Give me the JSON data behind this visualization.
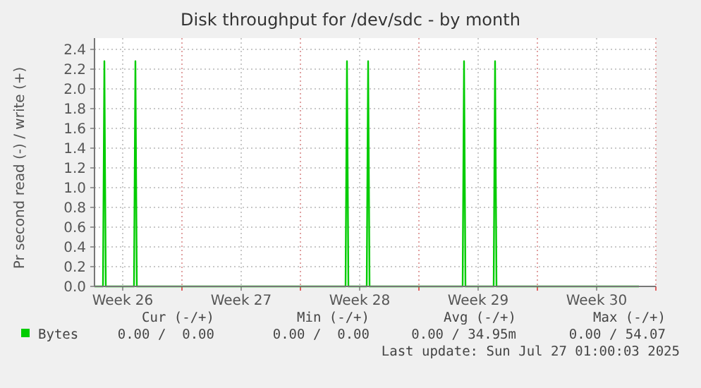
{
  "chart_data": {
    "type": "line",
    "title": "Disk throughput for /dev/sdc - by month",
    "ylabel": "Pr second read (-) / write (+)",
    "x": [
      "2025-06-24T20:00",
      "2025-06-25T08:00",
      "2025-06-25T10:00",
      "2025-06-25T12:00",
      "2025-06-27T04:00",
      "2025-06-27T06:00",
      "2025-06-27T08:00",
      "2025-07-09T16:00",
      "2025-07-09T18:00",
      "2025-07-09T20:00",
      "2025-07-10T22:00",
      "2025-07-11T00:00",
      "2025-07-11T02:00",
      "2025-07-16T14:00",
      "2025-07-16T16:00",
      "2025-07-16T18:00",
      "2025-07-18T10:00",
      "2025-07-18T12:00",
      "2025-07-18T14:00",
      "2025-07-27T00:00"
    ],
    "series": [
      {
        "name": "Bytes",
        "color": "#00cc00",
        "values": [
          0,
          0,
          2.28,
          0,
          0,
          2.28,
          0,
          0,
          2.28,
          0,
          0,
          2.28,
          0,
          0,
          2.28,
          0,
          0,
          2.28,
          0,
          0
        ]
      }
    ],
    "xlim": [
      "2025-06-24T20:00",
      "2025-07-28T00:00"
    ],
    "xticks": [
      {
        "value": "2025-06-26T12:00",
        "label": "Week 26"
      },
      {
        "value": "2025-06-30",
        "label": null
      },
      {
        "value": "2025-07-03T12:00",
        "label": "Week 27"
      },
      {
        "value": "2025-07-07",
        "label": null
      },
      {
        "value": "2025-07-10T12:00",
        "label": "Week 28"
      },
      {
        "value": "2025-07-14",
        "label": null
      },
      {
        "value": "2025-07-17T12:00",
        "label": "Week 29"
      },
      {
        "value": "2025-07-21",
        "label": null
      },
      {
        "value": "2025-07-24T12:00",
        "label": "Week 30"
      },
      {
        "value": "2025-07-28",
        "label": null
      }
    ],
    "ylim": [
      0,
      2.4
    ],
    "yticks": [
      {
        "value": 0,
        "label": "0.0"
      },
      {
        "value": 0.2,
        "label": "0.2"
      },
      {
        "value": 0.4,
        "label": "0.4"
      },
      {
        "value": 0.6,
        "label": "0.6"
      },
      {
        "value": 0.8,
        "label": "0.8"
      },
      {
        "value": 1,
        "label": "1.0"
      },
      {
        "value": 1.2,
        "label": "1.2"
      },
      {
        "value": 1.4,
        "label": "1.4"
      },
      {
        "value": 1.6,
        "label": "1.6"
      },
      {
        "value": 1.8,
        "label": "1.8"
      },
      {
        "value": 2,
        "label": "2.0"
      },
      {
        "value": 2.2,
        "label": "2.2"
      },
      {
        "value": 2.4,
        "label": "2.4"
      }
    ],
    "grid": true,
    "legend": "bottom left",
    "line_style": "solid",
    "annotations": [
      "Cur (-/+)",
      "Min (-/+)",
      "Avg (-/+)",
      "Max (-/+)",
      "0.00 /  0.00",
      "0.00 /  0.00",
      "0.00 / 34.95m",
      "0.00 / 54.07",
      "Last update: Sun Jul 27 01:00:03 2025"
    ]
  }
}
